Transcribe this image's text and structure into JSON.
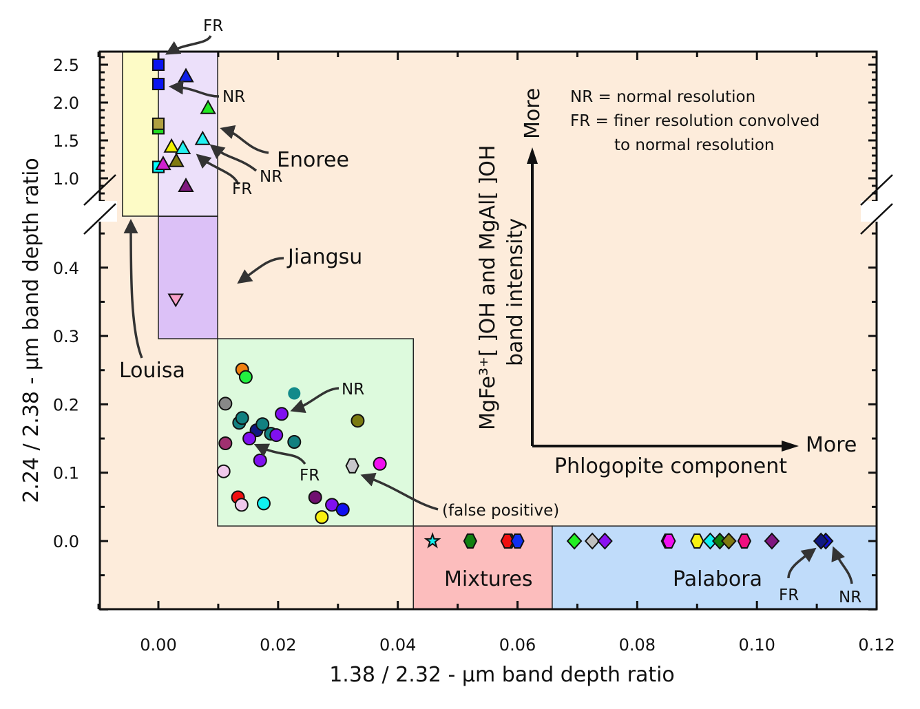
{
  "chart_data": {
    "type": "scatter",
    "xlabel": "1.38 / 2.32 - μm band depth ratio",
    "ylabel": "2.24 / 2.38 - μm band depth ratio",
    "xlim": [
      -0.01,
      0.12
    ],
    "ylim_lower": [
      -0.1,
      0.47
    ],
    "ylim_upper": [
      0.5,
      2.67
    ],
    "y_axis_break": true,
    "x_ticks": [
      "0.00",
      "0.02",
      "0.04",
      "0.06",
      "0.08",
      "0.10",
      "0.12"
    ],
    "x_tick_values": [
      0,
      0.02,
      0.04,
      0.06,
      0.08,
      0.1,
      0.12
    ],
    "y_ticks_lower": [
      "0.0",
      "0.1",
      "0.2",
      "0.3",
      "0.4"
    ],
    "y_tick_values_lower": [
      0,
      0.1,
      0.2,
      0.3,
      0.4
    ],
    "y_ticks_upper": [
      "1.0",
      "1.5",
      "2.0",
      "2.5"
    ],
    "y_tick_values_upper": [
      1.0,
      1.5,
      2.0,
      2.5
    ],
    "regions": [
      {
        "name": "Louisa",
        "x": [
          -0.006,
          0.0
        ],
        "y": [
          0.5,
          2.67
        ],
        "color": "#fdfbc6"
      },
      {
        "name": "Enoree",
        "x": [
          0.0,
          0.0099
        ],
        "y": [
          0.5,
          2.67
        ],
        "color": "#ece0fa"
      },
      {
        "name": "Jiangsu",
        "x": [
          0.0,
          0.0099
        ],
        "y": [
          0.296,
          0.475
        ],
        "color": "#dcc1f7"
      },
      {
        "name": "",
        "x": [
          0.0099,
          0.0426
        ],
        "y": [
          0.022,
          0.296
        ],
        "color": "#ddfadd"
      },
      {
        "name": "Mixtures",
        "x": [
          0.0426,
          0.0658
        ],
        "y": [
          -0.1,
          0.022
        ],
        "color": "#fcbdbd"
      },
      {
        "name": "Palabora",
        "x": [
          0.0658,
          0.12
        ],
        "y": [
          -0.1,
          0.022
        ],
        "color": "#c0dcfa"
      }
    ],
    "background_color": "#fdecdb",
    "points": [
      {
        "x": 0.0,
        "y": 2.5,
        "shape": "square",
        "color": "#0a14f0"
      },
      {
        "x": 0.0,
        "y": 2.245,
        "shape": "square",
        "color": "#0a14f0"
      },
      {
        "x": 0.0,
        "y": 1.66,
        "shape": "square",
        "color": "#22dd22"
      },
      {
        "x": 0.0,
        "y": 1.72,
        "shape": "square",
        "color": "#b0a040"
      },
      {
        "x": 0.0,
        "y": 1.15,
        "shape": "square",
        "color": "#00ffff"
      },
      {
        "x": 0.0046,
        "y": 2.35,
        "shape": "triangle",
        "color": "#1020e8"
      },
      {
        "x": 0.0083,
        "y": 1.93,
        "shape": "triangle",
        "color": "#22e822"
      },
      {
        "x": 0.0074,
        "y": 1.52,
        "shape": "triangle",
        "color": "#22f0f0"
      },
      {
        "x": 0.0008,
        "y": 1.19,
        "shape": "triangle",
        "color": "#d020d0"
      },
      {
        "x": 0.0022,
        "y": 1.42,
        "shape": "triangle",
        "color": "#f0f000"
      },
      {
        "x": 0.0041,
        "y": 1.4,
        "shape": "triangle",
        "color": "#22f0f0"
      },
      {
        "x": 0.003,
        "y": 1.23,
        "shape": "triangle",
        "color": "#807a10"
      },
      {
        "x": 0.0046,
        "y": 0.9,
        "shape": "triangle",
        "color": "#801880"
      },
      {
        "x": 0.0029,
        "y": 0.353,
        "shape": "triangle-down",
        "color": "#f8a0c8"
      },
      {
        "x": 0.014,
        "y": 0.251,
        "shape": "circle",
        "color": "#f08010"
      },
      {
        "x": 0.0146,
        "y": 0.24,
        "shape": "circle",
        "color": "#22f040"
      },
      {
        "x": 0.0227,
        "y": 0.216,
        "shape": "circle-nostroke",
        "color": "#128a8a"
      },
      {
        "x": 0.0112,
        "y": 0.201,
        "shape": "circle",
        "color": "#888888"
      },
      {
        "x": 0.0206,
        "y": 0.186,
        "shape": "circle",
        "color": "#8010f0"
      },
      {
        "x": 0.0333,
        "y": 0.176,
        "shape": "circle",
        "color": "#7a7a10"
      },
      {
        "x": 0.0135,
        "y": 0.173,
        "shape": "circle",
        "color": "#128080"
      },
      {
        "x": 0.014,
        "y": 0.18,
        "shape": "circle",
        "color": "#128080"
      },
      {
        "x": 0.0164,
        "y": 0.162,
        "shape": "circle",
        "color": "#101880"
      },
      {
        "x": 0.0174,
        "y": 0.171,
        "shape": "circle",
        "color": "#128080"
      },
      {
        "x": 0.0188,
        "y": 0.157,
        "shape": "circle",
        "color": "#128080"
      },
      {
        "x": 0.0197,
        "y": 0.155,
        "shape": "circle",
        "color": "#8010f0"
      },
      {
        "x": 0.0152,
        "y": 0.15,
        "shape": "circle",
        "color": "#8010f0"
      },
      {
        "x": 0.0227,
        "y": 0.145,
        "shape": "circle",
        "color": "#128080"
      },
      {
        "x": 0.0112,
        "y": 0.143,
        "shape": "circle",
        "color": "#a03070"
      },
      {
        "x": 0.017,
        "y": 0.118,
        "shape": "circle",
        "color": "#8010f0"
      },
      {
        "x": 0.0109,
        "y": 0.102,
        "shape": "circle",
        "color": "#f0c8ec"
      },
      {
        "x": 0.0324,
        "y": 0.11,
        "shape": "hexagon",
        "color": "#c8c8cc"
      },
      {
        "x": 0.037,
        "y": 0.113,
        "shape": "circle",
        "color": "#f010f0"
      },
      {
        "x": 0.0133,
        "y": 0.064,
        "shape": "circle",
        "color": "#f01010"
      },
      {
        "x": 0.0139,
        "y": 0.053,
        "shape": "circle",
        "color": "#f0c8ec"
      },
      {
        "x": 0.0176,
        "y": 0.055,
        "shape": "circle",
        "color": "#10f0f0"
      },
      {
        "x": 0.0262,
        "y": 0.064,
        "shape": "circle",
        "color": "#701070"
      },
      {
        "x": 0.029,
        "y": 0.053,
        "shape": "circle",
        "color": "#8010f0"
      },
      {
        "x": 0.0308,
        "y": 0.046,
        "shape": "circle",
        "color": "#1010f0"
      },
      {
        "x": 0.0273,
        "y": 0.035,
        "shape": "circle",
        "color": "#f8f010"
      },
      {
        "x": 0.0458,
        "y": 0.0,
        "shape": "star",
        "color": "#10f0f0"
      },
      {
        "x": 0.0521,
        "y": 0.0,
        "shape": "hexagon",
        "color": "#108010"
      },
      {
        "x": 0.0586,
        "y": 0.0,
        "shape": "hexagon",
        "color": "#22c022"
      },
      {
        "x": 0.0583,
        "y": 0.0,
        "shape": "hexagon",
        "color": "#f01010"
      },
      {
        "x": 0.06,
        "y": 0.0,
        "shape": "hexagon",
        "color": "#1030f0"
      },
      {
        "x": 0.0695,
        "y": 0.0,
        "shape": "diamond",
        "color": "#22f022"
      },
      {
        "x": 0.0725,
        "y": 0.0,
        "shape": "diamond",
        "color": "#c0c0c0"
      },
      {
        "x": 0.0746,
        "y": 0.0,
        "shape": "diamond",
        "color": "#8a10f0"
      },
      {
        "x": 0.0851,
        "y": 0.0,
        "shape": "hexagon",
        "color": "#f09010"
      },
      {
        "x": 0.0853,
        "y": 0.0,
        "shape": "hexagon",
        "color": "#f010f0"
      },
      {
        "x": 0.09,
        "y": 0.0,
        "shape": "hexagon",
        "color": "#f8f010"
      },
      {
        "x": 0.0922,
        "y": 0.0,
        "shape": "diamond",
        "color": "#10f0f0"
      },
      {
        "x": 0.0938,
        "y": 0.0,
        "shape": "diamond",
        "color": "#108010"
      },
      {
        "x": 0.0953,
        "y": 0.0,
        "shape": "diamond",
        "color": "#807a10"
      },
      {
        "x": 0.0979,
        "y": 0.0,
        "shape": "hexagon",
        "color": "#f01080"
      },
      {
        "x": 0.1025,
        "y": 0.0,
        "shape": "diamond",
        "color": "#801880"
      },
      {
        "x": 0.1115,
        "y": 0.0,
        "shape": "diamond",
        "color": "#1010d0"
      },
      {
        "x": 0.1107,
        "y": 0.0,
        "shape": "diamond",
        "color": "#101880"
      }
    ],
    "annotations": {
      "fr_top": "FR",
      "nr_top": "NR",
      "enoree": "Enoree",
      "nr_enoree": "NR",
      "fr_enoree": "FR",
      "jiangsu": "Jiangsu",
      "louisa": "Louisa",
      "nr_green": "NR",
      "fr_green": "FR",
      "false_positive": "(false positive)",
      "mixtures": "Mixtures",
      "palabora": "Palabora",
      "fr_palabora": "FR",
      "nr_palabora": "NR",
      "legend_nr": "NR = normal resolution",
      "legend_fr1": "FR = finer resolution convolved",
      "legend_fr2": "to normal resolution",
      "schematic_y_more": "More",
      "schematic_x_more": "More",
      "schematic_x_label": "Phlogopite component",
      "schematic_y_label1": "MgFe³⁺[   ]OH and MgAl[   ]OH",
      "schematic_y_label2": "band intensity"
    }
  }
}
